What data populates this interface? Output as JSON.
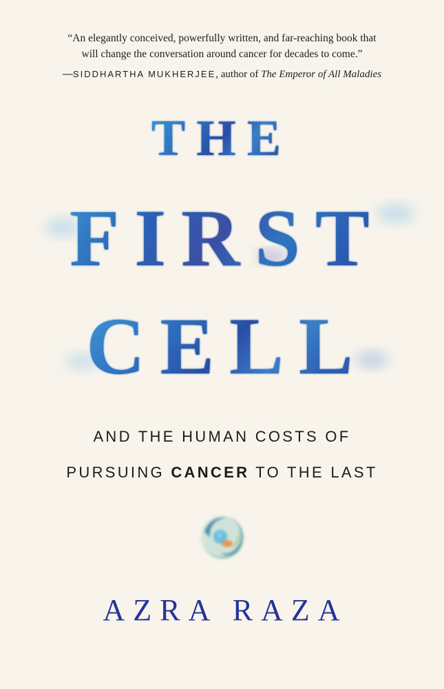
{
  "blurb": {
    "line1": "“An elegantly conceived, powerfully written, and far-reaching book that",
    "line2": "will change the conversation around cancer for decades to come.”",
    "attribution_dash": "—",
    "attribution_name": "SIDDHARTHA MUKHERJEE",
    "attribution_mid": ", author of ",
    "attribution_book": "The Emperor of All Maladies"
  },
  "title": {
    "line1": "THE",
    "line2": "FIRST",
    "line3": "CELL"
  },
  "subtitle": {
    "line1": "AND THE HUMAN COSTS OF",
    "line2_pre": "PURSUING ",
    "line2_bold": "CANCER",
    "line2_post": " TO THE LAST"
  },
  "author": "AZRA RAZA",
  "colors": {
    "background": "#f8f4eb",
    "title_blue_light": "#3d8fd0",
    "title_blue_dark": "#2a4fa8",
    "author_blue": "#24349a"
  },
  "logo": "watercolor-cell-icon"
}
